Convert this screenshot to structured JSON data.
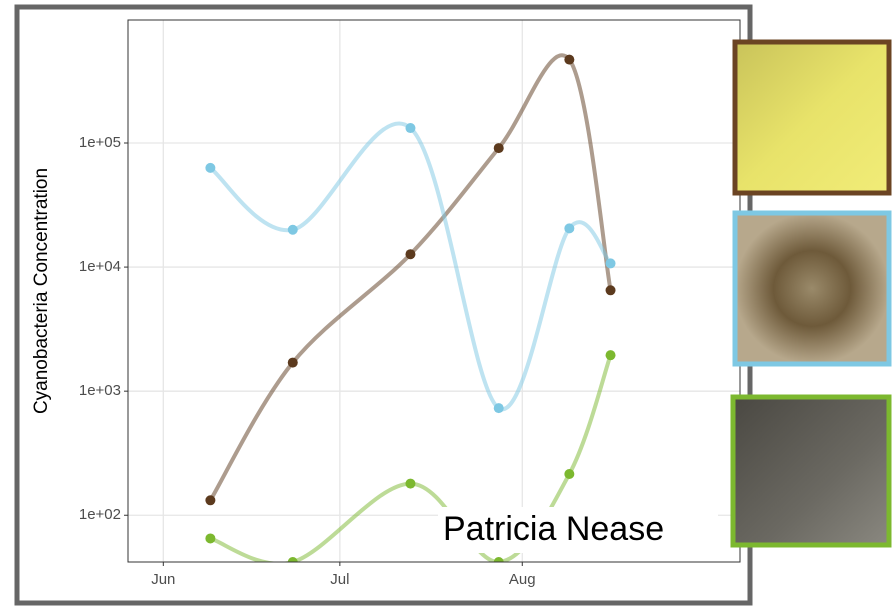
{
  "chart_data": {
    "type": "line",
    "y_label": "Cyanobacteria Concentration",
    "annotation": "Patricia Nease",
    "log_y": true,
    "grid": true,
    "x": [
      160,
      174,
      194,
      209,
      221,
      228
    ],
    "xlim": [
      146,
      250
    ],
    "xticks": [
      {
        "value": 152,
        "label": "Jun"
      },
      {
        "value": 182,
        "label": "Jul"
      },
      {
        "value": 213,
        "label": "Aug"
      }
    ],
    "ylim": [
      42,
      980000
    ],
    "yticks": [
      {
        "value": 100,
        "label": "1e+02"
      },
      {
        "value": 1000,
        "label": "1e+03"
      },
      {
        "value": 10000,
        "label": "1e+04"
      },
      {
        "value": 100000,
        "label": "1e+05"
      }
    ],
    "series": [
      {
        "color": "#5c3a1e",
        "values": [
          132,
          1700,
          12700,
          91000,
          470000,
          6500
        ]
      },
      {
        "color": "#7ec8e3",
        "values": [
          63000,
          20000,
          132000,
          730,
          20500,
          10700
        ]
      },
      {
        "color": "#7cb82f",
        "values": [
          65,
          42,
          180,
          42,
          215,
          1950
        ]
      }
    ]
  }
}
